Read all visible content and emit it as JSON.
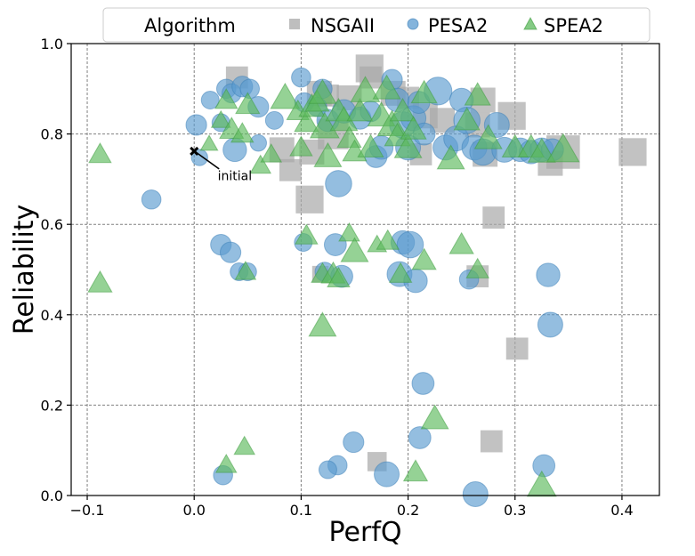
{
  "chart_data": {
    "type": "scatter",
    "title": "",
    "xlabel": "PerfQ",
    "ylabel": "Reliability",
    "xlim": [
      -0.115,
      0.435
    ],
    "ylim": [
      0.0,
      1.0
    ],
    "xticks": [
      -0.1,
      0.0,
      0.1,
      0.2,
      0.3,
      0.4
    ],
    "yticks": [
      0.0,
      0.2,
      0.4,
      0.6,
      0.8,
      1.0
    ],
    "xtick_labels": [
      "−0.1",
      "0.0",
      "0.1",
      "0.2",
      "0.3",
      "0.4"
    ],
    "ytick_labels": [
      "0.0",
      "0.2",
      "0.4",
      "0.6",
      "0.8",
      "1.0"
    ],
    "grid": true,
    "legend": {
      "title": "Algorithm",
      "position": "top",
      "entries": [
        "NSGAII",
        "PESA2",
        "SPEA2"
      ]
    },
    "annotation": {
      "text": "initial",
      "x": 0.0,
      "y": 0.762,
      "text_x": 0.022,
      "text_y": 0.71
    },
    "colors": {
      "NSGAII": "#a8a8a8",
      "PESA2": "#5b9bd0",
      "SPEA2": "#5cba5c",
      "grid": "#808080"
    },
    "series": [
      {
        "name": "NSGAII",
        "marker": "square",
        "points": [
          {
            "x": 0.04,
            "y": 0.925,
            "s": 0.4
          },
          {
            "x": 0.09,
            "y": 0.72,
            "s": 0.4
          },
          {
            "x": 0.082,
            "y": 0.765,
            "s": 0.5
          },
          {
            "x": 0.108,
            "y": 0.655,
            "s": 0.6
          },
          {
            "x": 0.117,
            "y": 0.89,
            "s": 0.5
          },
          {
            "x": 0.125,
            "y": 0.885,
            "s": 0.4
          },
          {
            "x": 0.11,
            "y": 0.76,
            "s": 0.5
          },
          {
            "x": 0.13,
            "y": 0.8,
            "s": 0.7
          },
          {
            "x": 0.145,
            "y": 0.88,
            "s": 0.5
          },
          {
            "x": 0.164,
            "y": 0.945,
            "s": 0.6
          },
          {
            "x": 0.165,
            "y": 0.925,
            "s": 0.4
          },
          {
            "x": 0.186,
            "y": 0.89,
            "s": 0.5
          },
          {
            "x": 0.2,
            "y": 0.88,
            "s": 0.4
          },
          {
            "x": 0.216,
            "y": 0.84,
            "s": 0.5
          },
          {
            "x": 0.232,
            "y": 0.83,
            "s": 0.5
          },
          {
            "x": 0.265,
            "y": 0.82,
            "s": 0.5
          },
          {
            "x": 0.27,
            "y": 0.875,
            "s": 0.5
          },
          {
            "x": 0.297,
            "y": 0.84,
            "s": 0.6
          },
          {
            "x": 0.272,
            "y": 0.755,
            "s": 0.5
          },
          {
            "x": 0.28,
            "y": 0.615,
            "s": 0.4
          },
          {
            "x": 0.212,
            "y": 0.755,
            "s": 0.4
          },
          {
            "x": 0.333,
            "y": 0.735,
            "s": 0.5
          },
          {
            "x": 0.345,
            "y": 0.76,
            "s": 0.8
          },
          {
            "x": 0.41,
            "y": 0.76,
            "s": 0.6
          },
          {
            "x": 0.265,
            "y": 0.485,
            "s": 0.4
          },
          {
            "x": 0.302,
            "y": 0.325,
            "s": 0.4
          },
          {
            "x": 0.278,
            "y": 0.12,
            "s": 0.4
          },
          {
            "x": 0.171,
            "y": 0.075,
            "s": 0.3
          },
          {
            "x": 0.118,
            "y": 0.49,
            "s": 0.2
          }
        ]
      },
      {
        "name": "PESA2",
        "marker": "circle",
        "points": [
          {
            "x": 0.002,
            "y": 0.82,
            "s": 0.35
          },
          {
            "x": 0.005,
            "y": 0.748,
            "s": 0.2
          },
          {
            "x": 0.015,
            "y": 0.875,
            "s": 0.25
          },
          {
            "x": 0.025,
            "y": 0.825,
            "s": 0.25
          },
          {
            "x": 0.03,
            "y": 0.9,
            "s": 0.3
          },
          {
            "x": 0.035,
            "y": 0.89,
            "s": 0.3
          },
          {
            "x": 0.045,
            "y": 0.905,
            "s": 0.35
          },
          {
            "x": 0.052,
            "y": 0.9,
            "s": 0.3
          },
          {
            "x": 0.06,
            "y": 0.86,
            "s": 0.35
          },
          {
            "x": 0.038,
            "y": 0.765,
            "s": 0.45
          },
          {
            "x": 0.06,
            "y": 0.78,
            "s": 0.2
          },
          {
            "x": 0.075,
            "y": 0.83,
            "s": 0.25
          },
          {
            "x": 0.1,
            "y": 0.925,
            "s": 0.3
          },
          {
            "x": 0.103,
            "y": 0.87,
            "s": 0.3
          },
          {
            "x": 0.115,
            "y": 0.86,
            "s": 0.3
          },
          {
            "x": 0.12,
            "y": 0.9,
            "s": 0.3
          },
          {
            "x": 0.125,
            "y": 0.83,
            "s": 0.4
          },
          {
            "x": 0.135,
            "y": 0.69,
            "s": 0.55
          },
          {
            "x": 0.14,
            "y": 0.85,
            "s": 0.45
          },
          {
            "x": 0.155,
            "y": 0.835,
            "s": 0.4
          },
          {
            "x": 0.165,
            "y": 0.85,
            "s": 0.35
          },
          {
            "x": 0.17,
            "y": 0.75,
            "s": 0.4
          },
          {
            "x": 0.175,
            "y": 0.77,
            "s": 0.45
          },
          {
            "x": 0.185,
            "y": 0.92,
            "s": 0.35
          },
          {
            "x": 0.19,
            "y": 0.875,
            "s": 0.45
          },
          {
            "x": 0.195,
            "y": 0.82,
            "s": 0.55
          },
          {
            "x": 0.2,
            "y": 0.77,
            "s": 0.5
          },
          {
            "x": 0.205,
            "y": 0.835,
            "s": 0.5
          },
          {
            "x": 0.21,
            "y": 0.87,
            "s": 0.4
          },
          {
            "x": 0.215,
            "y": 0.8,
            "s": 0.4
          },
          {
            "x": 0.228,
            "y": 0.895,
            "s": 0.6
          },
          {
            "x": 0.235,
            "y": 0.77,
            "s": 0.5
          },
          {
            "x": 0.245,
            "y": 0.79,
            "s": 0.5
          },
          {
            "x": 0.25,
            "y": 0.875,
            "s": 0.45
          },
          {
            "x": 0.255,
            "y": 0.83,
            "s": 0.55
          },
          {
            "x": 0.262,
            "y": 0.77,
            "s": 0.5
          },
          {
            "x": 0.27,
            "y": 0.76,
            "s": 0.55
          },
          {
            "x": 0.283,
            "y": 0.82,
            "s": 0.5
          },
          {
            "x": 0.29,
            "y": 0.765,
            "s": 0.5
          },
          {
            "x": 0.305,
            "y": 0.765,
            "s": 0.45
          },
          {
            "x": 0.315,
            "y": 0.76,
            "s": 0.45
          },
          {
            "x": 0.325,
            "y": 0.765,
            "s": 0.45
          },
          {
            "x": 0.335,
            "y": 0.765,
            "s": 0.4
          },
          {
            "x": -0.04,
            "y": 0.655,
            "s": 0.3
          },
          {
            "x": 0.025,
            "y": 0.555,
            "s": 0.35
          },
          {
            "x": 0.034,
            "y": 0.538,
            "s": 0.35
          },
          {
            "x": 0.042,
            "y": 0.495,
            "s": 0.25
          },
          {
            "x": 0.05,
            "y": 0.495,
            "s": 0.25
          },
          {
            "x": 0.102,
            "y": 0.56,
            "s": 0.25
          },
          {
            "x": 0.122,
            "y": 0.495,
            "s": 0.3
          },
          {
            "x": 0.132,
            "y": 0.555,
            "s": 0.4
          },
          {
            "x": 0.138,
            "y": 0.485,
            "s": 0.4
          },
          {
            "x": 0.195,
            "y": 0.56,
            "s": 0.45
          },
          {
            "x": 0.202,
            "y": 0.555,
            "s": 0.55
          },
          {
            "x": 0.192,
            "y": 0.49,
            "s": 0.5
          },
          {
            "x": 0.207,
            "y": 0.475,
            "s": 0.45
          },
          {
            "x": 0.257,
            "y": 0.478,
            "s": 0.3
          },
          {
            "x": 0.331,
            "y": 0.488,
            "s": 0.45
          },
          {
            "x": 0.333,
            "y": 0.378,
            "s": 0.5
          },
          {
            "x": 0.214,
            "y": 0.248,
            "s": 0.4
          },
          {
            "x": 0.211,
            "y": 0.128,
            "s": 0.4
          },
          {
            "x": 0.149,
            "y": 0.118,
            "s": 0.35
          },
          {
            "x": 0.18,
            "y": 0.047,
            "s": 0.5
          },
          {
            "x": 0.134,
            "y": 0.067,
            "s": 0.3
          },
          {
            "x": 0.125,
            "y": 0.057,
            "s": 0.25
          },
          {
            "x": 0.027,
            "y": 0.045,
            "s": 0.3
          },
          {
            "x": 0.263,
            "y": 0.003,
            "s": 0.5
          },
          {
            "x": 0.327,
            "y": 0.066,
            "s": 0.4
          }
        ]
      },
      {
        "name": "SPEA2",
        "marker": "triangle",
        "points": [
          {
            "x": -0.088,
            "y": 0.755,
            "s": 0.3
          },
          {
            "x": -0.088,
            "y": 0.47,
            "s": 0.35
          },
          {
            "x": 0.014,
            "y": 0.778,
            "s": 0.15
          },
          {
            "x": 0.025,
            "y": 0.83,
            "s": 0.2
          },
          {
            "x": 0.03,
            "y": 0.875,
            "s": 0.3
          },
          {
            "x": 0.035,
            "y": 0.81,
            "s": 0.35
          },
          {
            "x": 0.045,
            "y": 0.8,
            "s": 0.3
          },
          {
            "x": 0.05,
            "y": 0.865,
            "s": 0.35
          },
          {
            "x": 0.062,
            "y": 0.73,
            "s": 0.25
          },
          {
            "x": 0.072,
            "y": 0.755,
            "s": 0.25
          },
          {
            "x": 0.085,
            "y": 0.88,
            "s": 0.5
          },
          {
            "x": 0.097,
            "y": 0.85,
            "s": 0.3
          },
          {
            "x": 0.1,
            "y": 0.77,
            "s": 0.3
          },
          {
            "x": 0.105,
            "y": 0.825,
            "s": 0.35
          },
          {
            "x": 0.11,
            "y": 0.86,
            "s": 0.4
          },
          {
            "x": 0.115,
            "y": 0.87,
            "s": 0.35
          },
          {
            "x": 0.12,
            "y": 0.89,
            "s": 0.45
          },
          {
            "x": 0.122,
            "y": 0.815,
            "s": 0.5
          },
          {
            "x": 0.125,
            "y": 0.75,
            "s": 0.45
          },
          {
            "x": 0.135,
            "y": 0.85,
            "s": 0.4
          },
          {
            "x": 0.14,
            "y": 0.83,
            "s": 0.45
          },
          {
            "x": 0.145,
            "y": 0.79,
            "s": 0.35
          },
          {
            "x": 0.15,
            "y": 0.76,
            "s": 0.35
          },
          {
            "x": 0.155,
            "y": 0.85,
            "s": 0.4
          },
          {
            "x": 0.16,
            "y": 0.895,
            "s": 0.5
          },
          {
            "x": 0.165,
            "y": 0.77,
            "s": 0.4
          },
          {
            "x": 0.175,
            "y": 0.84,
            "s": 0.45
          },
          {
            "x": 0.18,
            "y": 0.9,
            "s": 0.45
          },
          {
            "x": 0.185,
            "y": 0.82,
            "s": 0.5
          },
          {
            "x": 0.19,
            "y": 0.795,
            "s": 0.4
          },
          {
            "x": 0.195,
            "y": 0.85,
            "s": 0.4
          },
          {
            "x": 0.2,
            "y": 0.77,
            "s": 0.45
          },
          {
            "x": 0.205,
            "y": 0.81,
            "s": 0.4
          },
          {
            "x": 0.215,
            "y": 0.89,
            "s": 0.4
          },
          {
            "x": 0.24,
            "y": 0.745,
            "s": 0.45
          },
          {
            "x": 0.255,
            "y": 0.83,
            "s": 0.4
          },
          {
            "x": 0.265,
            "y": 0.885,
            "s": 0.4
          },
          {
            "x": 0.275,
            "y": 0.79,
            "s": 0.45
          },
          {
            "x": 0.3,
            "y": 0.77,
            "s": 0.4
          },
          {
            "x": 0.315,
            "y": 0.77,
            "s": 0.4
          },
          {
            "x": 0.325,
            "y": 0.76,
            "s": 0.45
          },
          {
            "x": 0.345,
            "y": 0.765,
            "s": 0.6
          },
          {
            "x": 0.048,
            "y": 0.495,
            "s": 0.25
          },
          {
            "x": 0.105,
            "y": 0.575,
            "s": 0.3
          },
          {
            "x": 0.12,
            "y": 0.49,
            "s": 0.3
          },
          {
            "x": 0.13,
            "y": 0.49,
            "s": 0.35
          },
          {
            "x": 0.135,
            "y": 0.48,
            "s": 0.3
          },
          {
            "x": 0.145,
            "y": 0.58,
            "s": 0.25
          },
          {
            "x": 0.15,
            "y": 0.54,
            "s": 0.45
          },
          {
            "x": 0.171,
            "y": 0.555,
            "s": 0.2
          },
          {
            "x": 0.181,
            "y": 0.563,
            "s": 0.3
          },
          {
            "x": 0.193,
            "y": 0.49,
            "s": 0.3
          },
          {
            "x": 0.215,
            "y": 0.52,
            "s": 0.35
          },
          {
            "x": 0.25,
            "y": 0.555,
            "s": 0.35
          },
          {
            "x": 0.265,
            "y": 0.5,
            "s": 0.3
          },
          {
            "x": 0.12,
            "y": 0.375,
            "s": 0.45
          },
          {
            "x": 0.225,
            "y": 0.17,
            "s": 0.45
          },
          {
            "x": 0.207,
            "y": 0.052,
            "s": 0.35
          },
          {
            "x": 0.047,
            "y": 0.108,
            "s": 0.25
          },
          {
            "x": 0.03,
            "y": 0.068,
            "s": 0.25
          },
          {
            "x": 0.325,
            "y": 0.022,
            "s": 0.5
          }
        ]
      }
    ]
  }
}
